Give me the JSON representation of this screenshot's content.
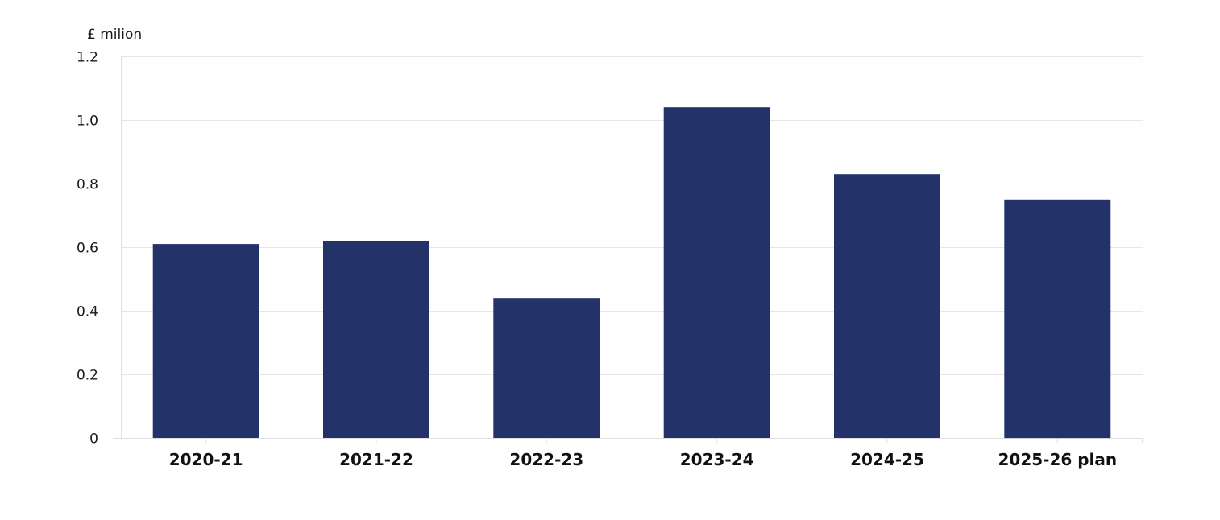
{
  "chart_data": {
    "type": "bar",
    "ylabel": "£ milion",
    "categories": [
      "2020-21",
      "2021-22",
      "2022-23",
      "2023-24",
      "2024-25",
      "2025-26 plan"
    ],
    "values": [
      0.61,
      0.62,
      0.44,
      1.04,
      0.83,
      0.75
    ],
    "ylim": [
      0,
      1.2
    ],
    "yticks": [
      0,
      0.2,
      0.4,
      0.6,
      0.8,
      1.0,
      1.2
    ],
    "ytick_labels": [
      "0",
      "0.2",
      "0.4",
      "0.6",
      "0.8",
      "1.0",
      "1.2"
    ],
    "grid": true,
    "bar_color": "#23336a",
    "legend": null
  }
}
